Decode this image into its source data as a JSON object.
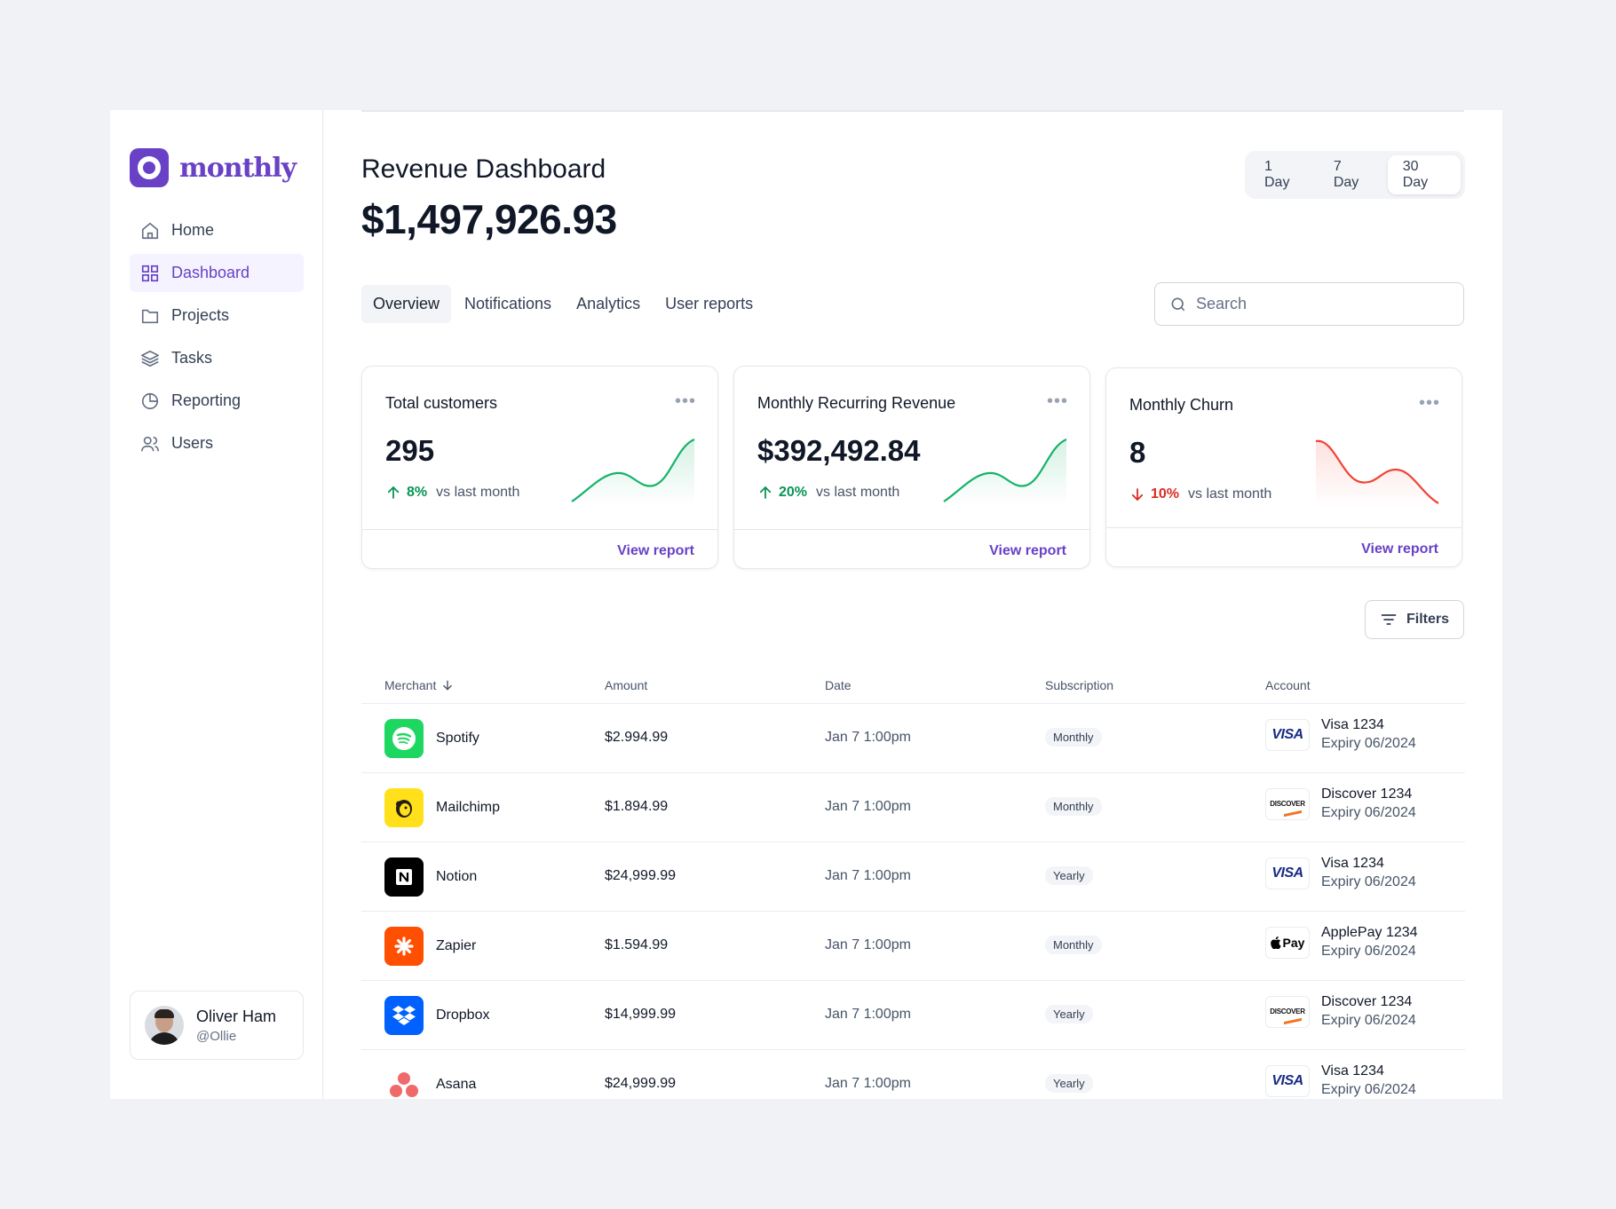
{
  "brand": {
    "name": "monthly",
    "color": "#6941c6"
  },
  "sidebar": {
    "items": [
      {
        "label": "Home",
        "icon": "home-icon"
      },
      {
        "label": "Dashboard",
        "icon": "grid-icon",
        "active": true
      },
      {
        "label": "Projects",
        "icon": "folder-icon"
      },
      {
        "label": "Tasks",
        "icon": "layers-icon"
      },
      {
        "label": "Reporting",
        "icon": "pie-chart-icon"
      },
      {
        "label": "Users",
        "icon": "users-icon"
      }
    ],
    "user": {
      "name": "Oliver Ham",
      "handle": "@Ollie"
    }
  },
  "header": {
    "title": "Revenue Dashboard",
    "amount": "$1,497,926.93",
    "ranges": [
      "1 Day",
      "7 Day",
      "30 Day"
    ],
    "active_range": "30 Day"
  },
  "tabs": [
    "Overview",
    "Notifications",
    "Analytics",
    "User reports"
  ],
  "active_tab": "Overview",
  "search": {
    "placeholder": "Search",
    "value": ""
  },
  "cards": [
    {
      "title": "Total customers",
      "value": "295",
      "trend": "up",
      "pct": "8%",
      "compare": "vs last month",
      "link": "View report"
    },
    {
      "title": "Monthly Recurring Revenue",
      "value": "$392,492.84",
      "trend": "up",
      "pct": "20%",
      "compare": "vs last month",
      "link": "View report"
    },
    {
      "title": "Monthly Churn",
      "value": "8",
      "trend": "down",
      "pct": "10%",
      "compare": "vs last month",
      "link": "View report"
    }
  ],
  "filters_label": "Filters",
  "table": {
    "columns": [
      "Merchant",
      "Amount",
      "Date",
      "Subscription",
      "Account"
    ],
    "rows": [
      {
        "merchant": "Spotify",
        "logo": "spotify-logo",
        "amount": "$2.994.99",
        "date": "Jan 7 1:00pm",
        "subscription": "Monthly",
        "brand": "visa",
        "account": "Visa 1234",
        "expiry": "Expiry 06/2024"
      },
      {
        "merchant": "Mailchimp",
        "logo": "mailchimp-logo",
        "amount": "$1.894.99",
        "date": "Jan 7 1:00pm",
        "subscription": "Monthly",
        "brand": "discover",
        "account": "Discover 1234",
        "expiry": "Expiry 06/2024"
      },
      {
        "merchant": "Notion",
        "logo": "notion-logo",
        "amount": "$24,999.99",
        "date": "Jan 7 1:00pm",
        "subscription": "Yearly",
        "brand": "visa",
        "account": "Visa 1234",
        "expiry": "Expiry 06/2024"
      },
      {
        "merchant": "Zapier",
        "logo": "zapier-logo",
        "amount": "$1.594.99",
        "date": "Jan 7 1:00pm",
        "subscription": "Monthly",
        "brand": "applepay",
        "account": "ApplePay 1234",
        "expiry": "Expiry 06/2024"
      },
      {
        "merchant": "Dropbox",
        "logo": "dropbox-logo",
        "amount": "$14,999.99",
        "date": "Jan 7 1:00pm",
        "subscription": "Yearly",
        "brand": "discover",
        "account": "Discover 1234",
        "expiry": "Expiry 06/2024"
      },
      {
        "merchant": "Asana",
        "logo": "asana-logo",
        "amount": "$24,999.99",
        "date": "Jan 7 1:00pm",
        "subscription": "Yearly",
        "brand": "visa",
        "account": "Visa 1234",
        "expiry": "Expiry 06/2024"
      }
    ]
  },
  "card_brand_labels": {
    "visa": "VISA",
    "discover": "DISCOVER",
    "applepay": "Pay"
  },
  "colors": {
    "up": "#079455",
    "down": "#d92d20",
    "accent": "#6941c6"
  }
}
